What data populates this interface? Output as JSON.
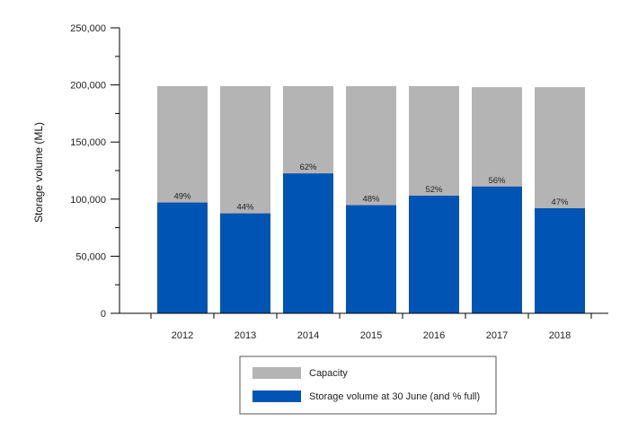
{
  "chart_data": {
    "type": "bar",
    "stacking": "overlay",
    "title": "",
    "xlabel": "",
    "ylabel": "Storage volume (ML)",
    "ylim": [
      0,
      250000
    ],
    "yticks": [
      0,
      50000,
      100000,
      150000,
      200000,
      250000
    ],
    "ytick_labels": [
      "0",
      "50,000",
      "100,000",
      "150,000",
      "200,000",
      "250,000"
    ],
    "categories": [
      "2012",
      "2013",
      "2014",
      "2015",
      "2016",
      "2017",
      "2018"
    ],
    "series": [
      {
        "name": "Capacity",
        "color": "#b4b4b4",
        "values": [
          199000,
          199000,
          199000,
          199000,
          199000,
          198000,
          198000
        ]
      },
      {
        "name": "Storage volume at 30 June (and % full)",
        "color": "#0054b4",
        "values": [
          97000,
          87500,
          122500,
          94700,
          103000,
          111000,
          92000
        ],
        "labels": [
          "49%",
          "44%",
          "62%",
          "48%",
          "52%",
          "56%",
          "47%"
        ]
      }
    ],
    "legend": {
      "position": "bottom-center",
      "entries": [
        "Capacity",
        "Storage volume at 30 June (and % full)"
      ]
    },
    "grid": false
  }
}
